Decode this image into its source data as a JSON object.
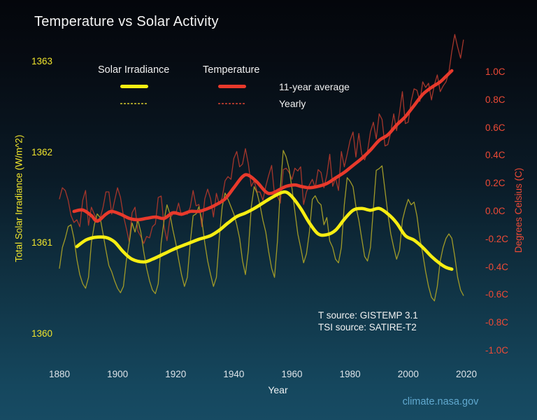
{
  "title": "Temperature vs Solar Activity",
  "legend": {
    "solar_label": "Solar Irradiance",
    "temp_label": "Temperature",
    "avg_label": "11-year average",
    "yearly_label": "Yearly"
  },
  "annotations": {
    "t_source": "T source: GISTEMP 3.1",
    "tsi_source": "TSI source: SATIRE-T2"
  },
  "footer": {
    "link": "climate.nasa.gov"
  },
  "colors": {
    "solar_avg": "#f7ee12",
    "solar_yearly": "#a09a28",
    "temp_avg": "#e8392b",
    "temp_yearly": "#a5362b",
    "left_axis": "#efe42c",
    "right_axis": "#ee4a36",
    "x_axis_text": "#dde3e8",
    "footer_link": "#61a9cf"
  },
  "chart_data": {
    "type": "line",
    "title": "Temperature vs Solar Activity",
    "x": {
      "label": "Year",
      "ticks": [
        1880,
        1900,
        1920,
        1940,
        1960,
        1980,
        2000,
        2020
      ],
      "range": [
        1878,
        2022
      ]
    },
    "y_left": {
      "label": "Total Solar Irradiance (W/m^2)",
      "ticks": [
        1363,
        1362,
        1361,
        1360
      ],
      "units": "W/m^2",
      "range": [
        1359.9,
        1363.1
      ]
    },
    "y_right": {
      "label": "Degrees Celsius (C)",
      "ticks": [
        "1.0C",
        "0.8C",
        "0.6C",
        "0.4C",
        "0.2C",
        "0.0C",
        "-0.2C",
        "-0.4C",
        "-0.6C",
        "-0.8C",
        "-1.0C"
      ],
      "units": "C",
      "range": [
        -1.1,
        1.3
      ]
    },
    "grid": false,
    "legend_position": "top-left",
    "series": [
      {
        "id": "temp_yearly",
        "name": "Temperature - Yearly",
        "axis": "right",
        "style": "thin",
        "color": "#a5362b",
        "start_year": 1880,
        "values": [
          0.09,
          0.17,
          0.15,
          0.08,
          -0.03,
          -0.08,
          -0.06,
          -0.11,
          0.08,
          0.15,
          -0.1,
          0.03,
          -0.02,
          -0.06,
          -0.05,
          0.03,
          0.14,
          0.14,
          -0.02,
          0.08,
          0.17,
          0.1,
          -0.03,
          -0.12,
          -0.22,
          -0.01,
          0.03,
          -0.14,
          -0.18,
          -0.23,
          -0.18,
          -0.19,
          -0.11,
          -0.09,
          0.1,
          0.11,
          -0.11,
          -0.21,
          -0.05,
          -0.02,
          -0.02,
          0.06,
          -0.03,
          -0.01,
          -0.02,
          0.03,
          0.15,
          0.04,
          0.05,
          -0.11,
          0.09,
          0.16,
          0.09,
          -0.04,
          0.13,
          0.05,
          0.1,
          0.22,
          0.25,
          0.23,
          0.38,
          0.43,
          0.32,
          0.34,
          0.45,
          0.34,
          0.18,
          0.22,
          0.14,
          0.14,
          0.08,
          0.18,
          0.26,
          0.33,
          0.12,
          0.11,
          0.06,
          0.3,
          0.31,
          0.28,
          0.23,
          0.31,
          0.29,
          0.32,
          0.05,
          0.14,
          0.19,
          0.23,
          0.17,
          0.3,
          0.28,
          0.17,
          0.26,
          0.41,
          0.18,
          0.24,
          0.15,
          0.43,
          0.32,
          0.41,
          0.51,
          0.57,
          0.39,
          0.56,
          0.41,
          0.37,
          0.43,
          0.57,
          0.64,
          0.52,
          0.7,
          0.66,
          0.47,
          0.48,
          0.57,
          0.7,
          0.58,
          0.71,
          0.86,
          0.63,
          0.64,
          0.79,
          0.88,
          0.87,
          0.79,
          0.93,
          0.89,
          0.92,
          0.8,
          0.91,
          0.98,
          0.86,
          0.9,
          0.93,
          1.0,
          1.15,
          1.27,
          1.18,
          1.1,
          1.23
        ]
      },
      {
        "id": "tsi_yearly",
        "name": "Solar Irradiance - Yearly",
        "axis": "left",
        "style": "thin",
        "color": "#a09a28",
        "start_year": 1880,
        "values": [
          1360.72,
          1360.95,
          1361.05,
          1361.18,
          1361.2,
          1361.05,
          1360.82,
          1360.65,
          1360.55,
          1360.5,
          1360.62,
          1361.0,
          1361.2,
          1361.32,
          1361.28,
          1361.1,
          1360.92,
          1360.75,
          1360.68,
          1360.58,
          1360.5,
          1360.45,
          1360.52,
          1360.8,
          1361.0,
          1361.22,
          1361.12,
          1361.25,
          1361.12,
          1360.9,
          1360.72,
          1360.58,
          1360.48,
          1360.44,
          1360.55,
          1361.0,
          1361.25,
          1361.42,
          1361.32,
          1361.15,
          1361.0,
          1360.82,
          1360.65,
          1360.52,
          1360.62,
          1361.0,
          1361.3,
          1361.32,
          1361.4,
          1361.25,
          1361.0,
          1360.8,
          1360.65,
          1360.52,
          1360.62,
          1361.05,
          1361.4,
          1361.55,
          1361.48,
          1361.4,
          1361.32,
          1361.2,
          1361.05,
          1360.8,
          1360.65,
          1360.92,
          1361.4,
          1361.62,
          1361.55,
          1361.42,
          1361.25,
          1361.12,
          1360.9,
          1360.72,
          1360.62,
          1361.02,
          1361.6,
          1362.02,
          1361.95,
          1361.82,
          1361.6,
          1361.35,
          1361.1,
          1360.95,
          1360.78,
          1360.88,
          1361.12,
          1361.48,
          1361.52,
          1361.45,
          1361.42,
          1361.2,
          1361.28,
          1361.02,
          1360.95,
          1360.82,
          1360.78,
          1360.95,
          1361.42,
          1361.72,
          1361.68,
          1361.62,
          1361.4,
          1361.25,
          1361.05,
          1360.85,
          1360.8,
          1360.95,
          1361.38,
          1361.8,
          1361.82,
          1361.85,
          1361.58,
          1361.32,
          1361.1,
          1360.95,
          1360.82,
          1360.92,
          1361.25,
          1361.38,
          1361.48,
          1361.42,
          1361.45,
          1361.3,
          1361.05,
          1360.88,
          1360.68,
          1360.52,
          1360.4,
          1360.36,
          1360.52,
          1360.8,
          1360.95,
          1361.05,
          1361.1,
          1361.05,
          1360.85,
          1360.62,
          1360.48,
          1360.42
        ]
      },
      {
        "id": "temp_avg",
        "name": "Temperature - 11-year average",
        "axis": "right",
        "style": "thick",
        "color": "#e8392b",
        "points": [
          [
            1885,
            0.0
          ],
          [
            1888,
            0.01
          ],
          [
            1891,
            -0.03
          ],
          [
            1893,
            -0.07
          ],
          [
            1896,
            -0.02
          ],
          [
            1898,
            0.0
          ],
          [
            1901,
            -0.02
          ],
          [
            1904,
            -0.05
          ],
          [
            1907,
            -0.06
          ],
          [
            1910,
            -0.05
          ],
          [
            1913,
            -0.04
          ],
          [
            1916,
            -0.05
          ],
          [
            1919,
            -0.01
          ],
          [
            1922,
            -0.02
          ],
          [
            1925,
            0.0
          ],
          [
            1928,
            0.0
          ],
          [
            1931,
            0.02
          ],
          [
            1934,
            0.05
          ],
          [
            1937,
            0.09
          ],
          [
            1940,
            0.17
          ],
          [
            1943,
            0.25
          ],
          [
            1945,
            0.26
          ],
          [
            1948,
            0.21
          ],
          [
            1951,
            0.14
          ],
          [
            1953,
            0.13
          ],
          [
            1956,
            0.16
          ],
          [
            1958,
            0.18
          ],
          [
            1961,
            0.19
          ],
          [
            1963,
            0.18
          ],
          [
            1966,
            0.17
          ],
          [
            1969,
            0.18
          ],
          [
            1972,
            0.2
          ],
          [
            1975,
            0.24
          ],
          [
            1978,
            0.28
          ],
          [
            1981,
            0.33
          ],
          [
            1984,
            0.38
          ],
          [
            1987,
            0.44
          ],
          [
            1990,
            0.51
          ],
          [
            1993,
            0.55
          ],
          [
            1996,
            0.62
          ],
          [
            1999,
            0.68
          ],
          [
            2002,
            0.76
          ],
          [
            2005,
            0.84
          ],
          [
            2008,
            0.89
          ],
          [
            2011,
            0.93
          ],
          [
            2013,
            0.97
          ],
          [
            2015,
            1.01
          ]
        ]
      },
      {
        "id": "tsi_avg",
        "name": "Solar Irradiance - 11-year average",
        "axis": "left",
        "style": "thick",
        "color": "#f7ee12",
        "points": [
          [
            1886,
            1360.96
          ],
          [
            1889,
            1361.03
          ],
          [
            1892,
            1361.06
          ],
          [
            1896,
            1361.06
          ],
          [
            1899,
            1361.01
          ],
          [
            1902,
            1360.9
          ],
          [
            1905,
            1360.82
          ],
          [
            1909,
            1360.79
          ],
          [
            1912,
            1360.82
          ],
          [
            1916,
            1360.88
          ],
          [
            1920,
            1360.94
          ],
          [
            1924,
            1360.99
          ],
          [
            1928,
            1361.04
          ],
          [
            1932,
            1361.08
          ],
          [
            1935,
            1361.14
          ],
          [
            1938,
            1361.22
          ],
          [
            1941,
            1361.29
          ],
          [
            1944,
            1361.33
          ],
          [
            1947,
            1361.38
          ],
          [
            1950,
            1361.44
          ],
          [
            1953,
            1361.5
          ],
          [
            1956,
            1361.55
          ],
          [
            1958,
            1361.56
          ],
          [
            1960,
            1361.51
          ],
          [
            1963,
            1361.38
          ],
          [
            1966,
            1361.22
          ],
          [
            1969,
            1361.1
          ],
          [
            1972,
            1361.09
          ],
          [
            1975,
            1361.14
          ],
          [
            1978,
            1361.26
          ],
          [
            1981,
            1361.36
          ],
          [
            1984,
            1361.38
          ],
          [
            1987,
            1361.36
          ],
          [
            1990,
            1361.38
          ],
          [
            1993,
            1361.32
          ],
          [
            1996,
            1361.22
          ],
          [
            1999,
            1361.08
          ],
          [
            2002,
            1361.03
          ],
          [
            2005,
            1360.95
          ],
          [
            2008,
            1360.85
          ],
          [
            2011,
            1360.77
          ],
          [
            2013,
            1360.73
          ],
          [
            2015,
            1360.71
          ]
        ]
      }
    ]
  }
}
